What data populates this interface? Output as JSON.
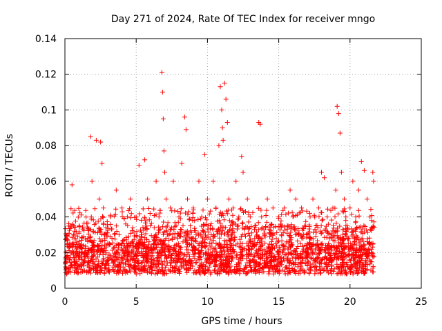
{
  "chart_data": {
    "type": "scatter",
    "title": "Day 271 of 2024, Rate Of TEC Index for receiver mngo",
    "xlabel": "GPS time / hours",
    "ylabel": "ROTI / TECUs",
    "xlim": [
      0,
      25
    ],
    "ylim": [
      0,
      0.14
    ],
    "xticks": [
      0,
      5,
      10,
      15,
      20,
      25
    ],
    "xtick_labels": [
      "0",
      "5",
      "10",
      "15",
      "20",
      "25"
    ],
    "yticks": [
      0,
      0.02,
      0.04,
      0.06,
      0.08,
      0.1,
      0.12,
      0.14
    ],
    "ytick_labels": [
      "0",
      "0.02",
      "0.04",
      "0.06",
      "0.08",
      "0.1",
      "0.12",
      "0.14"
    ],
    "grid": true,
    "marker": "+",
    "color": "#ff0000",
    "series": [
      {
        "name": "ROTI",
        "x": [
          0.05,
          0.2,
          0.35,
          0.5,
          0.6,
          0.8,
          1.0,
          1.2,
          1.4,
          1.6,
          1.8,
          1.85,
          1.9,
          2.0,
          2.2,
          2.4,
          2.5,
          2.6,
          2.7,
          2.8,
          3.0,
          3.2,
          3.4,
          3.6,
          3.8,
          4.0,
          4.2,
          4.4,
          4.6,
          4.8,
          5.0,
          5.2,
          5.4,
          5.6,
          5.8,
          6.0,
          6.2,
          6.4,
          6.6,
          6.8,
          6.85,
          6.9,
          6.95,
          7.0,
          7.1,
          7.2,
          7.4,
          7.6,
          7.8,
          8.0,
          8.2,
          8.4,
          8.5,
          8.6,
          8.8,
          9.0,
          9.2,
          9.4,
          9.6,
          9.8,
          10.0,
          10.2,
          10.4,
          10.6,
          10.8,
          10.9,
          11.0,
          11.05,
          11.1,
          11.2,
          11.3,
          11.4,
          11.5,
          11.6,
          11.8,
          12.0,
          12.2,
          12.4,
          12.5,
          12.6,
          12.8,
          13.0,
          13.2,
          13.4,
          13.6,
          13.7,
          13.8,
          14.0,
          14.2,
          14.4,
          14.6,
          14.8,
          15.0,
          15.2,
          15.4,
          15.6,
          15.8,
          16.0,
          16.2,
          16.4,
          16.6,
          16.8,
          17.0,
          17.2,
          17.4,
          17.6,
          17.8,
          18.0,
          18.2,
          18.4,
          18.6,
          18.8,
          19.0,
          19.1,
          19.2,
          19.3,
          19.4,
          19.6,
          19.8,
          20.0,
          20.2,
          20.4,
          20.6,
          20.8,
          21.0,
          21.2,
          21.4,
          21.6,
          21.65
        ],
        "y": [
          0.012,
          0.018,
          0.025,
          0.058,
          0.03,
          0.022,
          0.035,
          0.02,
          0.015,
          0.028,
          0.085,
          0.04,
          0.06,
          0.032,
          0.083,
          0.05,
          0.082,
          0.07,
          0.045,
          0.03,
          0.025,
          0.04,
          0.018,
          0.055,
          0.03,
          0.045,
          0.02,
          0.035,
          0.05,
          0.025,
          0.04,
          0.069,
          0.03,
          0.072,
          0.05,
          0.035,
          0.025,
          0.06,
          0.04,
          0.121,
          0.11,
          0.095,
          0.077,
          0.065,
          0.05,
          0.03,
          0.045,
          0.06,
          0.035,
          0.04,
          0.07,
          0.096,
          0.089,
          0.05,
          0.035,
          0.045,
          0.03,
          0.06,
          0.04,
          0.075,
          0.05,
          0.035,
          0.06,
          0.045,
          0.08,
          0.113,
          0.1,
          0.09,
          0.083,
          0.115,
          0.106,
          0.093,
          0.05,
          0.035,
          0.045,
          0.06,
          0.04,
          0.074,
          0.065,
          0.03,
          0.05,
          0.04,
          0.025,
          0.035,
          0.093,
          0.092,
          0.04,
          0.03,
          0.05,
          0.035,
          0.045,
          0.025,
          0.04,
          0.03,
          0.045,
          0.035,
          0.055,
          0.04,
          0.05,
          0.03,
          0.045,
          0.035,
          0.025,
          0.04,
          0.05,
          0.035,
          0.045,
          0.065,
          0.062,
          0.04,
          0.03,
          0.045,
          0.055,
          0.102,
          0.098,
          0.087,
          0.065,
          0.05,
          0.035,
          0.045,
          0.06,
          0.04,
          0.055,
          0.071,
          0.066,
          0.05,
          0.04,
          0.065,
          0.06
        ]
      }
    ],
    "bulk_band": {
      "x_range": [
        0,
        21.7
      ],
      "y_range": [
        0.004,
        0.045
      ],
      "dense_below": 0.025
    }
  }
}
